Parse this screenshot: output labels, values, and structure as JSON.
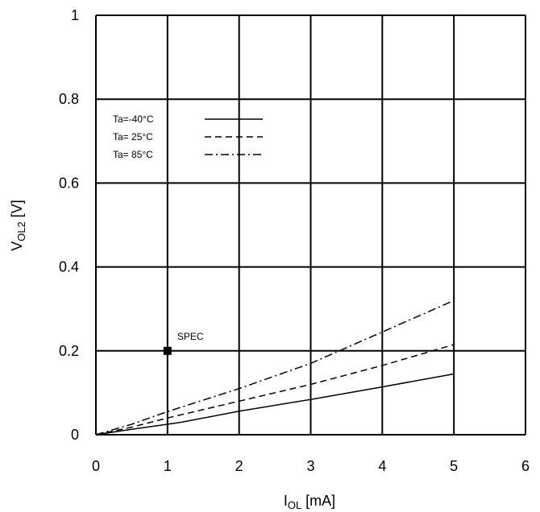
{
  "chart_data": {
    "type": "line",
    "title": "",
    "xlabel": {
      "main": "I",
      "sub": "OL",
      "unit": " [mA]"
    },
    "ylabel": {
      "main": "V",
      "sub": "OL2",
      "unit": " [V]"
    },
    "xlim": [
      0,
      6
    ],
    "ylim": [
      0,
      1
    ],
    "xticks": [
      "0",
      "1",
      "2",
      "3",
      "4",
      "5",
      "6"
    ],
    "yticks": [
      "0",
      "0.2",
      "0.4",
      "0.6",
      "0.8",
      "1"
    ],
    "grid": true,
    "legend_position": "upper-left",
    "series": [
      {
        "name": "Ta=-40°C",
        "dash": "solid",
        "color": "#000000",
        "x": [
          0,
          0.5,
          1,
          1.2,
          2,
          3,
          4,
          5
        ],
        "y": [
          0,
          0.013,
          0.025,
          0.03,
          0.056,
          0.084,
          0.114,
          0.145
        ]
      },
      {
        "name": "Ta= 25°C",
        "dash": "dashed",
        "color": "#000000",
        "x": [
          0,
          0.5,
          1,
          2,
          3,
          4,
          5
        ],
        "y": [
          0,
          0.018,
          0.04,
          0.08,
          0.12,
          0.165,
          0.215
        ]
      },
      {
        "name": "Ta= 85°C",
        "dash": "dashdot",
        "color": "#000000",
        "x": [
          0,
          0.5,
          1,
          2,
          3,
          4,
          5
        ],
        "y": [
          0,
          0.025,
          0.055,
          0.11,
          0.17,
          0.245,
          0.32
        ]
      }
    ],
    "annotations": [
      {
        "label": "SPEC",
        "x": 1,
        "y": 0.2
      }
    ]
  }
}
